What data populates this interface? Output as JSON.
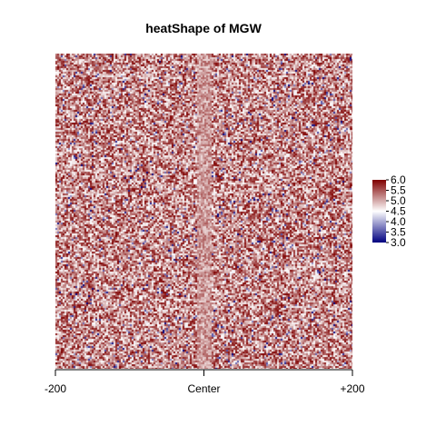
{
  "chart_data": {
    "type": "heatmap",
    "title": "heatShape of MGW",
    "xlabel": "",
    "ylabel": "",
    "x_range": [
      -200,
      200
    ],
    "x_ticks": [
      {
        "value": -200,
        "label": "-200"
      },
      {
        "value": 0,
        "label": "Center"
      },
      {
        "value": 200,
        "label": "+200"
      }
    ],
    "color_scale": {
      "min": 3.0,
      "max": 6.0,
      "colors": [
        "#00007f",
        "#ffffff",
        "#7f0000"
      ],
      "ticks": [
        "3.0",
        "3.5",
        "4.0",
        "4.5",
        "5.0",
        "5.5",
        "6.0"
      ]
    },
    "value_note": "MGW values mostly between 4.5 and 6.0 (reds dominate) with scattered low (blue) values; lighter band near center"
  }
}
